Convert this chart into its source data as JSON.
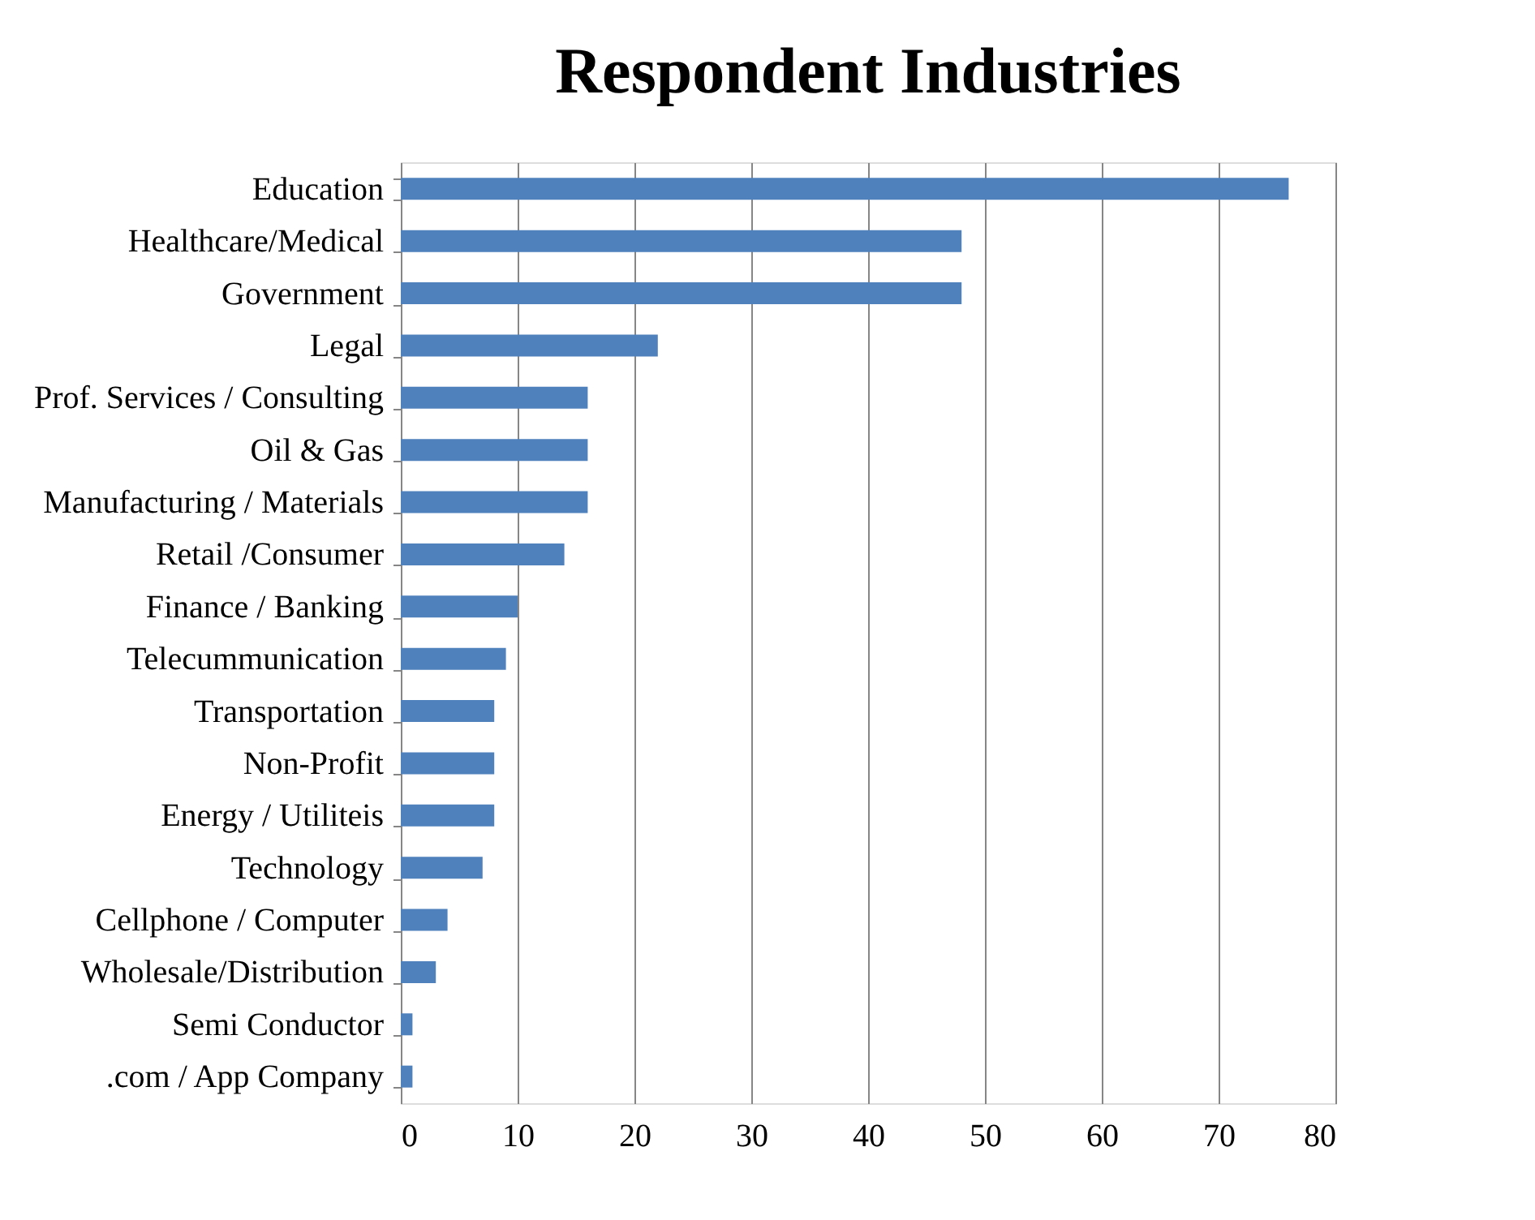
{
  "chart_data": {
    "type": "bar",
    "orientation": "horizontal",
    "title": "Respondent Industries",
    "categories": [
      "Education",
      "Healthcare/Medical",
      "Government",
      "Legal",
      "Prof. Services / Consulting",
      "Oil & Gas",
      "Manufacturing / Materials",
      "Retail /Consumer",
      "Finance / Banking",
      "Telecummunication",
      "Transportation",
      "Non-Profit",
      "Energy / Utiliteis",
      "Technology",
      "Cellphone / Computer",
      "Wholesale/Distribution",
      "Semi Conductor",
      ".com / App Company"
    ],
    "values": [
      76,
      48,
      48,
      22,
      16,
      16,
      16,
      14,
      10,
      9,
      8,
      8,
      8,
      7,
      4,
      3,
      1,
      1
    ],
    "color": "#4f81bd",
    "xlim": [
      0,
      80
    ],
    "xticks": [
      0,
      10,
      20,
      30,
      40,
      50,
      60,
      70,
      80
    ],
    "grid": "x"
  }
}
